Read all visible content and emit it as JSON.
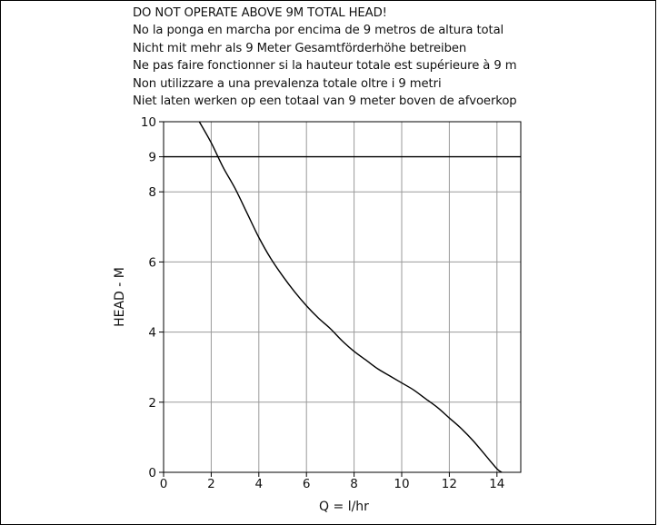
{
  "warnings": [
    "DO NOT OPERATE ABOVE 9M TOTAL HEAD!",
    "No la ponga en marcha por encima de 9 metros de altura total",
    "Nicht mit mehr als 9 Meter Gesamtförderhöhe betreiben",
    "Ne pas faire fonctionner si la hauteur totale est supérieure à 9 m",
    "Non utilizzare a una prevalenza totale oltre i 9 metri",
    "Niet laten werken op een totaal van 9 meter boven de afvoerkop"
  ],
  "chart_data": {
    "type": "line",
    "title": "",
    "xlabel": "Q = l/hr",
    "ylabel": "HEAD - M",
    "xlim": [
      0,
      15
    ],
    "ylim": [
      0,
      10
    ],
    "x_ticks": [
      0,
      2,
      4,
      6,
      8,
      10,
      12,
      14
    ],
    "y_ticks": [
      0,
      2,
      4,
      6,
      8,
      9,
      10
    ],
    "grid": true,
    "limit_line": {
      "y": 9
    },
    "series": [
      {
        "x": [
          1.5,
          2.0,
          2.5,
          3.0,
          3.5,
          4.0,
          4.5,
          5.0,
          5.5,
          6.0,
          6.5,
          7.0,
          7.5,
          8.0,
          8.5,
          9.0,
          9.5,
          10.0,
          10.5,
          11.0,
          11.5,
          12.0,
          12.5,
          13.0,
          13.5,
          14.0,
          14.2
        ],
        "y": [
          10.0,
          9.4,
          8.7,
          8.1,
          7.4,
          6.7,
          6.1,
          5.6,
          5.15,
          4.75,
          4.4,
          4.1,
          3.75,
          3.45,
          3.2,
          2.95,
          2.75,
          2.55,
          2.35,
          2.1,
          1.85,
          1.55,
          1.25,
          0.9,
          0.5,
          0.1,
          0.0
        ]
      }
    ]
  }
}
